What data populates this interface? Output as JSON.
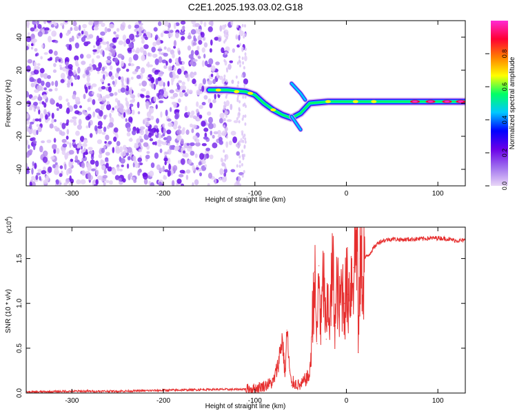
{
  "title": "C2E1.2025.193.03.02.G18",
  "chart_data": [
    {
      "type": "heatmap",
      "xlabel": "Height of straight line (km)",
      "ylabel": "Frequency (Hz)",
      "xlim": [
        -350,
        130
      ],
      "ylim": [
        -50,
        50
      ],
      "x_ticks": [
        -300,
        -200,
        -100,
        0,
        100
      ],
      "y_ticks": [
        -40,
        -20,
        0,
        20,
        40
      ],
      "colorbar": {
        "label": "Normalized spectral amplitude",
        "range": [
          0.0,
          1.0
        ],
        "ticks": [
          "0.0",
          "0.2",
          "0.4",
          "0.6",
          "0.8"
        ],
        "colors": [
          "#e9d7f7",
          "#a070ee",
          "#6a00e8",
          "#0000ff",
          "#00c8ff",
          "#00ff66",
          "#ffff00",
          "#ff8000",
          "#ff0033",
          "#ff2ad4"
        ]
      },
      "noise_region_x": [
        -350,
        -110
      ],
      "signal_track": [
        {
          "x": -150,
          "y": 8
        },
        {
          "x": -130,
          "y": 8
        },
        {
          "x": -110,
          "y": 7
        },
        {
          "x": -100,
          "y": 5
        },
        {
          "x": -90,
          "y": 0
        },
        {
          "x": -80,
          "y": -4
        },
        {
          "x": -70,
          "y": -7
        },
        {
          "x": -60,
          "y": -9
        },
        {
          "x": -50,
          "y": -6
        },
        {
          "x": -45,
          "y": -3
        },
        {
          "x": -40,
          "y": 0
        },
        {
          "x": -20,
          "y": 1
        },
        {
          "x": 0,
          "y": 1
        },
        {
          "x": 50,
          "y": 1
        },
        {
          "x": 100,
          "y": 1
        },
        {
          "x": 130,
          "y": 1
        }
      ],
      "branch_track": [
        {
          "x": -60,
          "y": -8
        },
        {
          "x": -55,
          "y": -12
        },
        {
          "x": -50,
          "y": -16
        }
      ],
      "upper_branch": [
        {
          "x": -60,
          "y": 12
        },
        {
          "x": -50,
          "y": 6
        },
        {
          "x": -45,
          "y": 2
        }
      ]
    },
    {
      "type": "line",
      "xlabel": "Height of straight line (km)",
      "ylabel": "SNR (10 * v/v)",
      "y_scale_label": "(x10",
      "y_scale_exp": "4",
      "y_scale_suffix": ")",
      "xlim": [
        -350,
        130
      ],
      "ylim": [
        0,
        1.85
      ],
      "x_ticks": [
        -300,
        -200,
        -100,
        0,
        100
      ],
      "y_ticks": [
        "0.0",
        "0.5",
        "1.0",
        "1.5"
      ],
      "color": "#e62e2e",
      "series": [
        {
          "x": [
            -350,
            -300,
            -250,
            -200,
            -150,
            -120,
            -100,
            -90,
            -80,
            -75,
            -70,
            -67,
            -65,
            -62,
            -60,
            -58,
            -55,
            -50,
            -45,
            -40,
            -38,
            -35,
            -32,
            -30,
            -28,
            -25,
            -22,
            -20,
            -18,
            -15,
            -12,
            -10,
            -8,
            -5,
            -2,
            0,
            2,
            5,
            8,
            10,
            12,
            13,
            15,
            18,
            20,
            25,
            30,
            35,
            40,
            50,
            60,
            80,
            100,
            110,
            120,
            130
          ],
          "values": [
            0.01,
            0.02,
            0.02,
            0.03,
            0.04,
            0.04,
            0.05,
            0.08,
            0.12,
            0.3,
            0.62,
            0.2,
            0.7,
            0.25,
            0.08,
            0.12,
            0.1,
            0.08,
            0.15,
            0.2,
            0.6,
            1.35,
            0.55,
            1.42,
            0.7,
            1.3,
            0.6,
            1.1,
            0.8,
            1.4,
            0.75,
            1.25,
            0.85,
            1.2,
            1.0,
            1.18,
            1.1,
            1.25,
            1.4,
            1.6,
            1.9,
            0.45,
            1.5,
            1.3,
            1.5,
            1.55,
            1.62,
            1.68,
            1.7,
            1.72,
            1.71,
            1.72,
            1.73,
            1.72,
            1.7,
            1.7
          ]
        }
      ]
    }
  ]
}
